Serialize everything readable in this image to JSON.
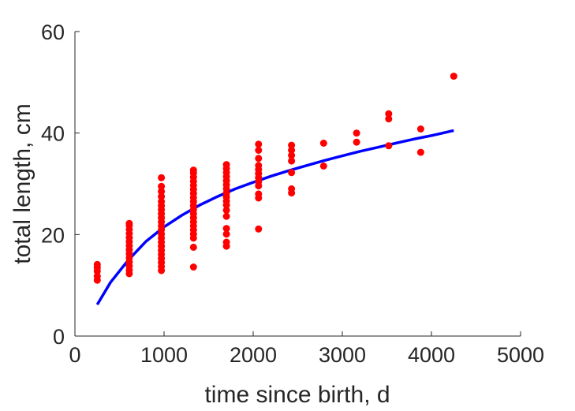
{
  "chart_data": {
    "type": "scatter",
    "title": "",
    "xlabel": "time since birth, d",
    "ylabel": "total length, cm",
    "xlim": [
      0,
      5000
    ],
    "ylim": [
      0,
      60
    ],
    "xticks": [
      0,
      1000,
      2000,
      3000,
      4000,
      5000
    ],
    "xtick_labels": [
      "0",
      "1000",
      "2000",
      "3000",
      "4000",
      "5000"
    ],
    "yticks": [
      0,
      20,
      40,
      60
    ],
    "ytick_labels": [
      "0",
      "20",
      "40",
      "60"
    ],
    "grid": false,
    "legend": "none",
    "series": [
      {
        "kind": "scatter",
        "color": "#ff0000",
        "points": [
          [
            250,
            11
          ],
          [
            250,
            11.8
          ],
          [
            250,
            12.8
          ],
          [
            250,
            13.5
          ],
          [
            250,
            14.1
          ],
          [
            610,
            12.3
          ],
          [
            610,
            13
          ],
          [
            610,
            13.8
          ],
          [
            610,
            14.6
          ],
          [
            610,
            15.4
          ],
          [
            610,
            16.2
          ],
          [
            610,
            17
          ],
          [
            610,
            17.8
          ],
          [
            610,
            18.6
          ],
          [
            610,
            19.4
          ],
          [
            610,
            20.2
          ],
          [
            610,
            21
          ],
          [
            610,
            21.8
          ],
          [
            610,
            22.2
          ],
          [
            970,
            12.9
          ],
          [
            970,
            13.7
          ],
          [
            970,
            14.5
          ],
          [
            970,
            15.3
          ],
          [
            970,
            16.1
          ],
          [
            970,
            16.9
          ],
          [
            970,
            17.7
          ],
          [
            970,
            18.5
          ],
          [
            970,
            19.3
          ],
          [
            970,
            20.1
          ],
          [
            970,
            20.9
          ],
          [
            970,
            21.7
          ],
          [
            970,
            22.5
          ],
          [
            970,
            23.3
          ],
          [
            970,
            24.1
          ],
          [
            970,
            24.9
          ],
          [
            970,
            25.7
          ],
          [
            970,
            26.5
          ],
          [
            970,
            27.5
          ],
          [
            970,
            28.5
          ],
          [
            970,
            29.5
          ],
          [
            970,
            31.2
          ],
          [
            1330,
            13.6
          ],
          [
            1330,
            17.5
          ],
          [
            1330,
            19.3
          ],
          [
            1330,
            20.1
          ],
          [
            1330,
            20.9
          ],
          [
            1330,
            21.7
          ],
          [
            1330,
            22.5
          ],
          [
            1330,
            23.3
          ],
          [
            1330,
            24.1
          ],
          [
            1330,
            24.9
          ],
          [
            1330,
            25.7
          ],
          [
            1330,
            26.5
          ],
          [
            1330,
            27.3
          ],
          [
            1330,
            28.1
          ],
          [
            1330,
            28.9
          ],
          [
            1330,
            29.7
          ],
          [
            1330,
            30.5
          ],
          [
            1330,
            31.3
          ],
          [
            1330,
            32.1
          ],
          [
            1330,
            32.7
          ],
          [
            1700,
            17.7
          ],
          [
            1700,
            18.5
          ],
          [
            1700,
            20.1
          ],
          [
            1700,
            21.2
          ],
          [
            1700,
            23.6
          ],
          [
            1700,
            24.8
          ],
          [
            1700,
            25.8
          ],
          [
            1700,
            26.6
          ],
          [
            1700,
            27.4
          ],
          [
            1700,
            28.2
          ],
          [
            1700,
            29
          ],
          [
            1700,
            29.8
          ],
          [
            1700,
            30.6
          ],
          [
            1700,
            31.4
          ],
          [
            1700,
            32.2
          ],
          [
            1700,
            33
          ],
          [
            1700,
            33.8
          ],
          [
            2060,
            21.1
          ],
          [
            2060,
            27.2
          ],
          [
            2060,
            28
          ],
          [
            2060,
            29.6
          ],
          [
            2060,
            30.4
          ],
          [
            2060,
            31.2
          ],
          [
            2060,
            32
          ],
          [
            2060,
            32.8
          ],
          [
            2060,
            33.6
          ],
          [
            2060,
            35
          ],
          [
            2060,
            36.6
          ],
          [
            2060,
            37.8
          ],
          [
            2430,
            28.2
          ],
          [
            2430,
            29
          ],
          [
            2430,
            32.2
          ],
          [
            2430,
            34.5
          ],
          [
            2430,
            35.6
          ],
          [
            2430,
            36.6
          ],
          [
            2430,
            37.6
          ],
          [
            2790,
            33.5
          ],
          [
            2790,
            38
          ],
          [
            3160,
            38.2
          ],
          [
            3160,
            40
          ],
          [
            3520,
            37.5
          ],
          [
            3520,
            42.8
          ],
          [
            3520,
            43.8
          ],
          [
            3880,
            36.2
          ],
          [
            3880,
            40.8
          ],
          [
            4250,
            51.2
          ]
        ]
      },
      {
        "kind": "line",
        "color": "#0000ff",
        "x": [
          250,
          400,
          600,
          800,
          1000,
          1200,
          1400,
          1600,
          1800,
          2000,
          2200,
          2400,
          2600,
          2800,
          3000,
          3200,
          3400,
          3600,
          3800,
          4000,
          4250
        ],
        "y": [
          6.2,
          10.6,
          15.0,
          18.7,
          21.5,
          23.8,
          25.8,
          27.5,
          29.0,
          30.3,
          31.5,
          32.6,
          33.6,
          34.6,
          35.5,
          36.4,
          37.2,
          38.0,
          38.8,
          39.5,
          40.5
        ]
      }
    ]
  }
}
